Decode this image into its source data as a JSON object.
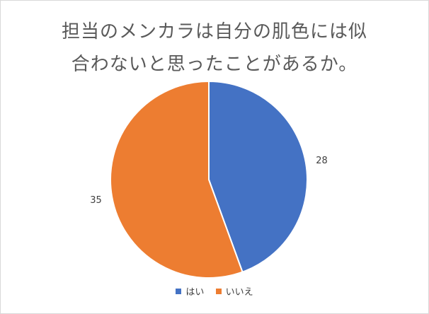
{
  "chart_data": {
    "type": "pie",
    "title_lines": [
      "担当のメンカラは自分の肌色には似",
      "合わないと思ったことがあるか。"
    ],
    "slices": [
      {
        "label": "はい",
        "value": 28,
        "color": "#4472C4"
      },
      {
        "label": "いいえ",
        "value": 35,
        "color": "#ED7D31"
      }
    ],
    "legend_placement": "bottom",
    "start_angle_deg": 0,
    "direction": "clockwise"
  }
}
